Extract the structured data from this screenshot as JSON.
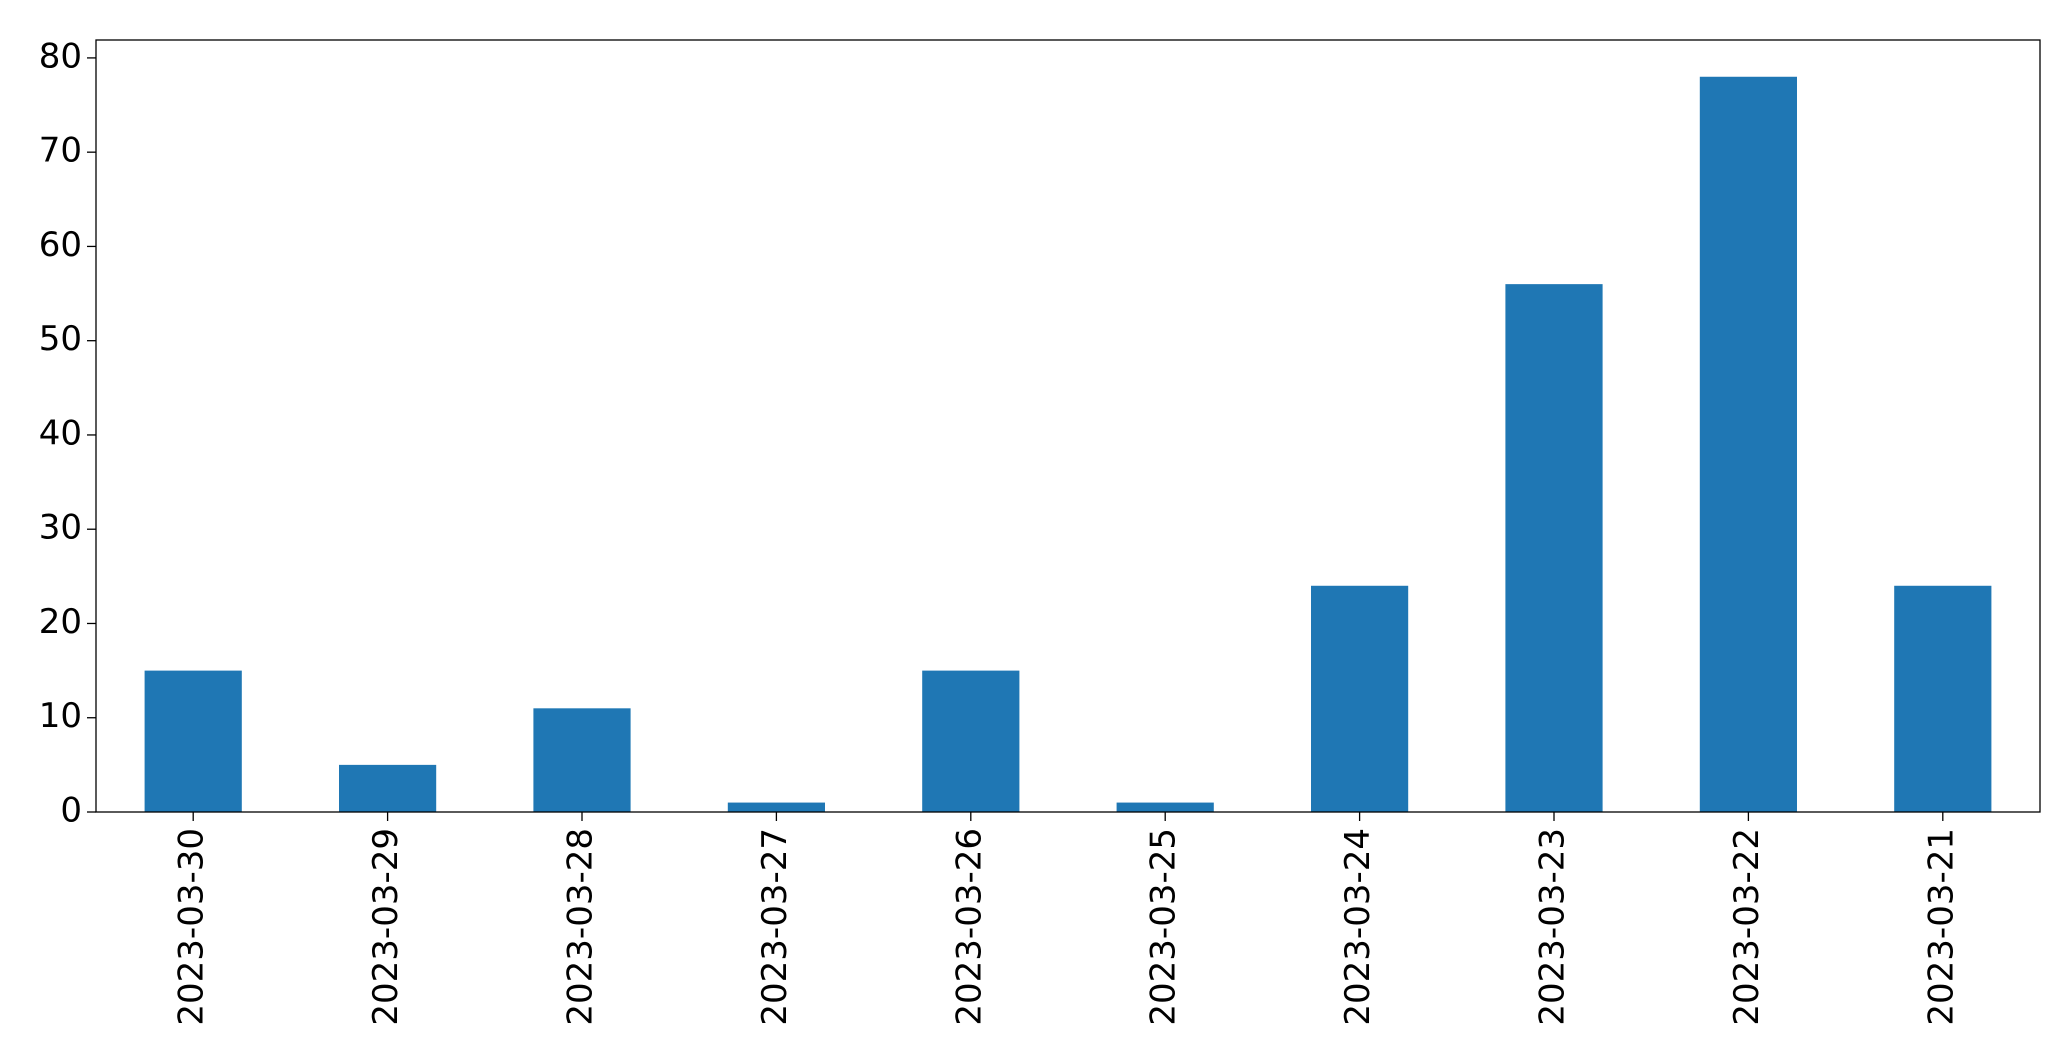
{
  "chart_data": {
    "type": "bar",
    "categories": [
      "2023-03-30",
      "2023-03-29",
      "2023-03-28",
      "2023-03-27",
      "2023-03-26",
      "2023-03-25",
      "2023-03-24",
      "2023-03-23",
      "2023-03-22",
      "2023-03-21"
    ],
    "values": [
      15,
      5,
      11,
      1,
      15,
      1,
      24,
      56,
      78,
      24
    ],
    "color": "#1f77b4",
    "ylim": [
      0,
      81.9
    ],
    "yticks": [
      0,
      10,
      20,
      30,
      40,
      50,
      60,
      70,
      80
    ],
    "grid": false
  }
}
